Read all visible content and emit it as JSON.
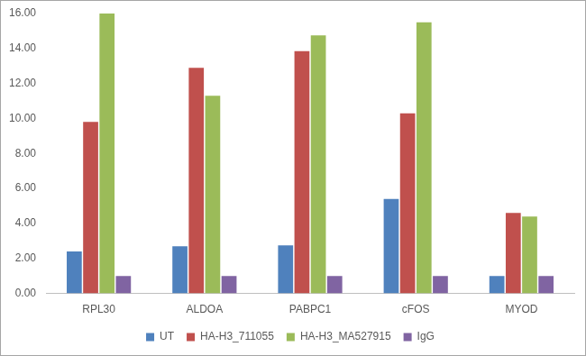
{
  "chart_data": {
    "type": "bar",
    "categories": [
      "RPL30",
      "ALDOA",
      "PABPC1",
      "cFOS",
      "MYOD"
    ],
    "series": [
      {
        "name": "UT",
        "color": "#4f81bd",
        "values": [
          2.4,
          2.7,
          2.75,
          5.4,
          1.0
        ]
      },
      {
        "name": "HA-H3_711055",
        "color": "#c0504d",
        "values": [
          9.8,
          12.9,
          13.85,
          10.3,
          4.6
        ]
      },
      {
        "name": "HA-H3_MA527915",
        "color": "#9bbb59",
        "values": [
          16.0,
          11.3,
          14.75,
          15.5,
          4.4
        ]
      },
      {
        "name": "IgG",
        "color": "#8064a2",
        "values": [
          1.0,
          1.0,
          1.0,
          1.0,
          1.0
        ]
      }
    ],
    "ylim": [
      0,
      16
    ],
    "yticks": [
      {
        "value": 0,
        "label": "0.00"
      },
      {
        "value": 2,
        "label": "2.00"
      },
      {
        "value": 4,
        "label": "4.00"
      },
      {
        "value": 6,
        "label": "6.00"
      },
      {
        "value": 8,
        "label": "8.00"
      },
      {
        "value": 10,
        "label": "10.00"
      },
      {
        "value": 12,
        "label": "12.00"
      },
      {
        "value": 14,
        "label": "14.00"
      },
      {
        "value": 16,
        "label": "16.00"
      }
    ],
    "grid": false,
    "legend": "bottom"
  }
}
